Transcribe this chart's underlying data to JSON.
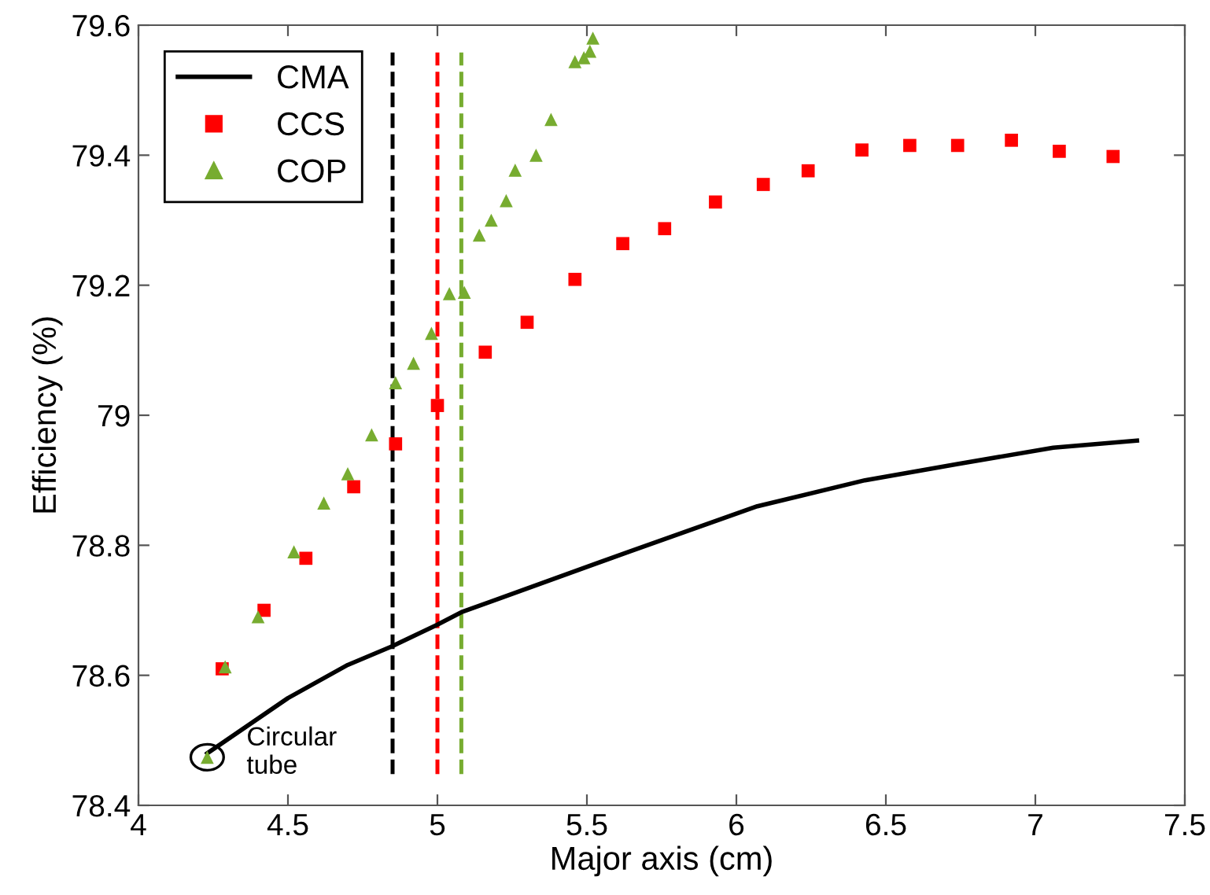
{
  "chart_data": {
    "type": "line",
    "xlabel": "Major axis (cm)",
    "ylabel": "Efficiency (%)",
    "xlim": [
      4,
      7.5
    ],
    "xticks": [
      4,
      4.5,
      5,
      5.5,
      6,
      6.5,
      7,
      7.5
    ],
    "ylim": [
      78.4,
      79.6
    ],
    "yticks": [
      78.4,
      78.6,
      78.8,
      79,
      79.2,
      79.4,
      79.6
    ],
    "grid": false,
    "legend": "top left",
    "series": [
      {
        "name": "CMA",
        "color": "#000000",
        "marker": "none",
        "line_style": "solid",
        "x": [
          4.23,
          4.5,
          4.7,
          4.85,
          5.0,
          5.08,
          5.64,
          6.07,
          6.43,
          6.74,
          7.06,
          7.34
        ],
        "values": [
          78.48,
          78.565,
          78.616,
          78.645,
          78.678,
          78.697,
          78.79,
          78.86,
          78.9,
          78.925,
          78.95,
          78.961
        ]
      },
      {
        "name": "CCS",
        "type": "scatter",
        "color": "#ff0000",
        "marker": "square",
        "x": [
          4.28,
          4.42,
          4.56,
          4.72,
          4.86,
          5.0,
          5.16,
          5.3,
          5.46,
          5.62,
          5.76,
          5.93,
          6.09,
          6.24,
          6.42,
          6.58,
          6.74,
          6.92,
          7.08,
          7.26
        ],
        "values": [
          78.61,
          78.7,
          78.78,
          78.89,
          78.956,
          79.015,
          79.097,
          79.143,
          79.209,
          79.264,
          79.287,
          79.328,
          79.355,
          79.376,
          79.408,
          79.415,
          79.415,
          79.423,
          79.406,
          79.398
        ]
      },
      {
        "name": "COP",
        "type": "scatter",
        "color": "#77ac30",
        "marker": "triangle",
        "x": [
          4.23,
          4.29,
          4.4,
          4.52,
          4.62,
          4.7,
          4.78,
          4.86,
          4.92,
          4.98,
          5.04,
          5.09,
          5.14,
          5.18,
          5.23,
          5.26,
          5.33,
          5.38,
          5.46,
          5.49,
          5.51,
          5.52
        ],
        "values": [
          78.474,
          78.613,
          78.69,
          78.79,
          78.865,
          78.91,
          78.97,
          79.05,
          79.08,
          79.126,
          79.187,
          79.189,
          79.277,
          79.3,
          79.33,
          79.377,
          79.4,
          79.455,
          79.544,
          79.55,
          79.56,
          79.58
        ]
      }
    ],
    "ref_lines": [
      {
        "axis": "x",
        "value": 4.85,
        "color": "#000000",
        "line_style": "dashed"
      },
      {
        "axis": "x",
        "value": 5.0,
        "color": "#ff0000",
        "line_style": "dashed"
      },
      {
        "axis": "x",
        "value": 5.08,
        "color": "#77ac30",
        "line_style": "dashed"
      }
    ],
    "annotations": [
      {
        "text": "Circular\ntube",
        "x": 4.23,
        "y": 78.474
      }
    ]
  }
}
